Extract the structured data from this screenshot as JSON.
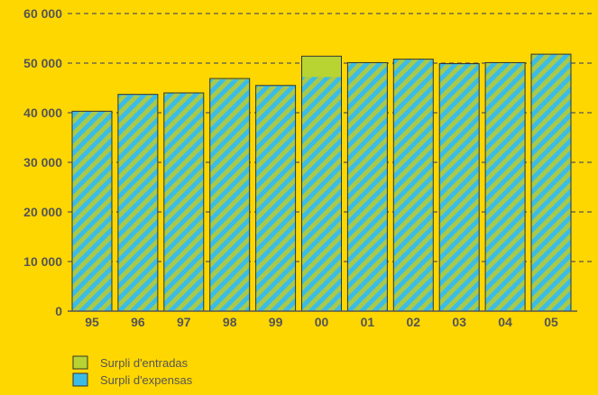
{
  "chart_data": {
    "type": "bar",
    "categories": [
      "95",
      "96",
      "97",
      "98",
      "99",
      "00",
      "01",
      "02",
      "03",
      "04",
      "05"
    ],
    "series": [
      {
        "name": "Surpli d'entradas",
        "values": [
          40300,
          43500,
          43900,
          46900,
          45300,
          51400,
          50000,
          50800,
          49700,
          50000,
          51800
        ],
        "color": "#B8D432"
      },
      {
        "name": "Surpli d'expensas",
        "values": [
          40300,
          43700,
          44000,
          46700,
          45500,
          47200,
          50100,
          50700,
          49900,
          50100,
          51800
        ],
        "color": "#3BBCE6"
      }
    ],
    "y_ticks": [
      "0",
      "10 000",
      "20 000",
      "30 000",
      "40 000",
      "50 000",
      "60 000"
    ],
    "ylim": [
      0,
      60000
    ],
    "grid": true,
    "legend": "bottom-left",
    "stripe_color": "#A9C94A",
    "background": "#FFD700",
    "text_color": "#555555"
  }
}
